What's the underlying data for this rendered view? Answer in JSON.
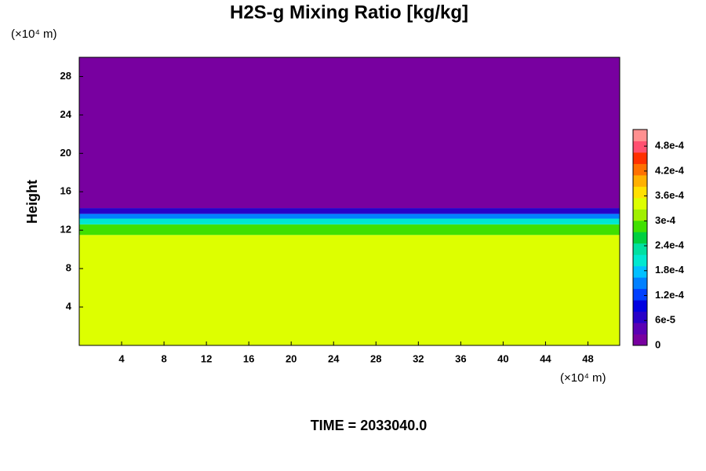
{
  "chart_data": {
    "type": "contour",
    "title": "H2S-g Mixing Ratio [kg/kg]",
    "x_unit": "(×10⁴ m)",
    "y_unit": "(×10⁴ m)",
    "y_label": "Height",
    "footer": "TIME = 2033040.0",
    "xlim": [
      0,
      51
    ],
    "ylim": [
      0,
      30
    ],
    "xticks": [
      4,
      8,
      12,
      16,
      20,
      24,
      28,
      32,
      36,
      40,
      44,
      48
    ],
    "yticks": [
      4,
      8,
      12,
      16,
      20,
      24,
      28
    ],
    "layers": [
      {
        "y0": 0,
        "y1": 11.5,
        "value": 0.00035
      },
      {
        "y0": 11.5,
        "y1": 12.6,
        "value": 0.00028
      },
      {
        "y0": 12.6,
        "y1": 13.2,
        "value": 0.0002
      },
      {
        "y0": 13.2,
        "y1": 13.7,
        "value": 0.00014
      },
      {
        "y0": 13.7,
        "y1": 14.3,
        "value": 6e-05
      },
      {
        "y0": 14.3,
        "y1": 30,
        "value": 0
      }
    ],
    "clim": [
      0,
      0.00052
    ],
    "colormap": [
      "#7800a0",
      "#5a00b4",
      "#2800c8",
      "#0000e0",
      "#0040ff",
      "#0080ff",
      "#00c0ff",
      "#00e8d0",
      "#00e0a0",
      "#00d040",
      "#40e000",
      "#a0f000",
      "#ddff00",
      "#ffe000",
      "#ffb000",
      "#ff7000",
      "#ff3000",
      "#ff5070",
      "#ff9090"
    ],
    "cticks": [
      {
        "value": 0,
        "label": "0"
      },
      {
        "value": 6e-05,
        "label": "6e-5"
      },
      {
        "value": 0.00012,
        "label": "1.2e-4"
      },
      {
        "value": 0.00018,
        "label": "1.8e-4"
      },
      {
        "value": 0.00024,
        "label": "2.4e-4"
      },
      {
        "value": 0.0003,
        "label": "3e-4"
      },
      {
        "value": 0.00036,
        "label": "3.6e-4"
      },
      {
        "value": 0.00042,
        "label": "4.2e-4"
      },
      {
        "value": 0.00048,
        "label": "4.8e-4"
      }
    ]
  }
}
